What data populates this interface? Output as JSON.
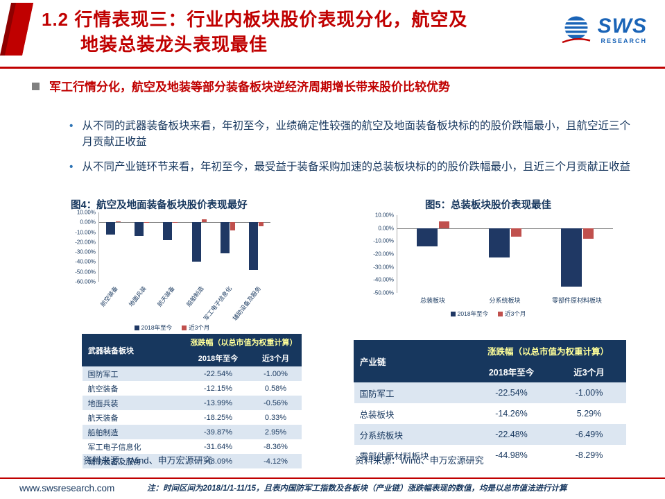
{
  "colors": {
    "accent_red": "#C00000",
    "navy": "#17375E",
    "row_stripe": "#DCE6F1",
    "bar_blue": "#1F3864",
    "bar_red": "#C0504D",
    "logo_blue": "#1A64B7",
    "table_header_bg": "#17375E",
    "table_header_accent": "#FFFF99"
  },
  "header": {
    "title_line1": "1.2 行情表现三：行业内板块股价表现分化，航空及",
    "title_line2": "地装总装龙头表现最佳",
    "logo": {
      "text": "SWS",
      "sub": "RESEARCH"
    }
  },
  "content": {
    "main_bullet": "军工行情分化，航空及地装等部分装备板块逆经济周期增长带来股价比较优势",
    "sub_bullets": [
      "从不同的武器装备板块来看，年初至今，业绩确定性较强的航空及地面装备板块标的的股价跌幅最小，且航空近三个月贡献正收益",
      "从不同产业链环节来看，年初至今，最受益于装备采购加速的总装板块标的的股价跌幅最小，且近三个月贡献正收益"
    ]
  },
  "figures": {
    "left": {
      "title": "图4：航空及地面装备板块股价表现最好",
      "source": "资料来源：Wind、申万宏源研究"
    },
    "right": {
      "title": "图5：总装板块股价表现最佳",
      "source": "资料来源：Wind、申万宏源研究"
    }
  },
  "chart_data": [
    {
      "type": "bar",
      "title": "图4：航空及地面装备板块股价表现最好",
      "categories": [
        "航空装备",
        "地面兵装",
        "航天装备",
        "船舶制造",
        "军工电子信息化",
        "辅助设备及服务"
      ],
      "series": [
        {
          "name": "2018年至今",
          "color": "#1F3864",
          "values": [
            -12.15,
            -13.99,
            -18.25,
            -39.87,
            -31.64,
            -48.09
          ]
        },
        {
          "name": "近3个月",
          "color": "#C0504D",
          "values": [
            0.58,
            -0.56,
            0.33,
            2.95,
            -8.36,
            -4.12
          ]
        }
      ],
      "ylim": [
        -60,
        10
      ],
      "yticks": [
        "10.00%",
        "0.00%",
        "-10.00%",
        "-20.00%",
        "-30.00%",
        "-40.00%",
        "-50.00%",
        "-60.00%"
      ],
      "grid": false,
      "legend_position": "bottom"
    },
    {
      "type": "bar",
      "title": "图5：总装板块股价表现最佳",
      "categories": [
        "总装板块",
        "分系统板块",
        "零部件原材料板块"
      ],
      "series": [
        {
          "name": "2018年至今",
          "color": "#1F3864",
          "values": [
            -14.26,
            -22.48,
            -44.98
          ]
        },
        {
          "name": "近3个月",
          "color": "#C0504D",
          "values": [
            5.29,
            -6.49,
            -8.29
          ]
        }
      ],
      "ylim": [
        -50,
        10
      ],
      "yticks": [
        "10.00%",
        "0.00%",
        "-10.00%",
        "-20.00%",
        "-30.00%",
        "-40.00%",
        "-50.00%"
      ],
      "grid": false,
      "legend_position": "bottom"
    }
  ],
  "tables": {
    "left": {
      "col1_header": "武器装备板块",
      "span_header": "涨跌幅（以总市值为权重计算）",
      "sub_headers": [
        "2018年至今",
        "近3个月"
      ],
      "rows": [
        [
          "国防军工",
          "-22.54%",
          "-1.00%"
        ],
        [
          "航空装备",
          "-12.15%",
          "0.58%"
        ],
        [
          "地面兵装",
          "-13.99%",
          "-0.56%"
        ],
        [
          "航天装备",
          "-18.25%",
          "0.33%"
        ],
        [
          "船舶制造",
          "-39.87%",
          "2.95%"
        ],
        [
          "军工电子信息化",
          "-31.64%",
          "-8.36%"
        ],
        [
          "辅助设备及服务",
          "-48.09%",
          "-4.12%"
        ]
      ]
    },
    "right": {
      "col1_header": "产业链",
      "span_header": "涨跌幅（以总市值为权重计算）",
      "sub_headers": [
        "2018年至今",
        "近3个月"
      ],
      "rows": [
        [
          "国防军工",
          "-22.54%",
          "-1.00%"
        ],
        [
          "总装板块",
          "-14.26%",
          "5.29%"
        ],
        [
          "分系统板块",
          "-22.48%",
          "-6.49%"
        ],
        [
          "零部件原材料板块",
          "-44.98%",
          "-8.29%"
        ]
      ]
    }
  },
  "footer": {
    "url": "www.swsresearch.com",
    "note": "注：时间区间为2018/1/1-11/15，且表内国防军工指数及各板块（产业链）涨跌幅表现的数值，均是以总市值法进行计算"
  }
}
